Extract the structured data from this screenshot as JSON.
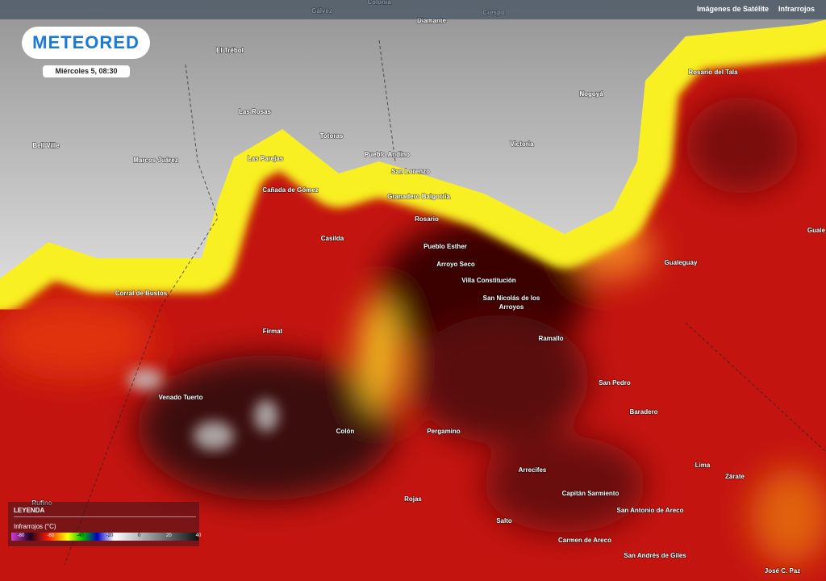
{
  "header": {
    "links": [
      "Imágenes de Satélite",
      "Infrarrojos"
    ]
  },
  "logo": "METEORED",
  "timestamp": "Miércoles 5, 08:30",
  "map": {
    "places": [
      "Gálvez",
      "Colonia",
      "Crespo",
      "Diamante",
      "El Trébol",
      "Nogoyá",
      "Rosario del Tala",
      "Las Rosas",
      "Totoras",
      "Bell Ville",
      "Marcos Juárez",
      "Las Parejas",
      "Pueblo Andino",
      "Victoria",
      "San Lorenzo",
      "Cañada de Gómez",
      "Granadero Baigorria",
      "Rosario",
      "Casilda",
      "Gualeguay",
      "Guale",
      "Pueblo Esther",
      "Arroyo Seco",
      "Villa Constitución",
      "Corral de Bustos",
      "San Nicolás de los",
      "Arroyos",
      "Firmat",
      "Ramallo",
      "San Pedro",
      "Venado Tuerto",
      "Baradero",
      "Colón",
      "Pergamino",
      "Lima",
      "Arrecifes",
      "Zárate",
      "Capitán Sarmiento",
      "Rojas",
      "Rufino",
      "San Antonio de Areco",
      "Salto",
      "Carmen de Areco",
      "San Andrés de Giles",
      "José C. Paz"
    ]
  },
  "legend": {
    "title": "LEYENDA",
    "subtitle": "Infrarrojos (°C)",
    "ticks": [
      -80,
      -60,
      -40,
      -20,
      0,
      20,
      40
    ]
  }
}
